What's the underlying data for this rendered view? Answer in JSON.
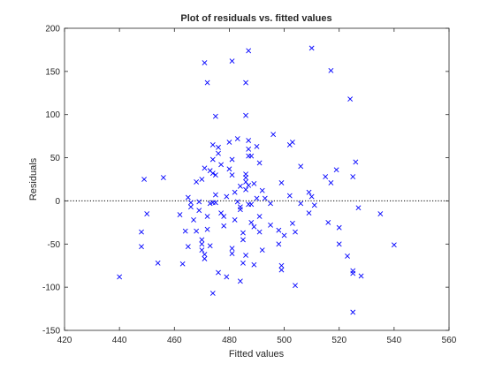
{
  "chart_data": {
    "type": "scatter",
    "title": "Plot of residuals vs. fitted values",
    "xlabel": "Fitted values",
    "ylabel": "Residuals",
    "xlim": [
      420,
      560
    ],
    "ylim": [
      -150,
      200
    ],
    "xticks": [
      420,
      440,
      460,
      480,
      500,
      520,
      540,
      560
    ],
    "yticks": [
      -150,
      -100,
      -50,
      0,
      50,
      100,
      150,
      200
    ],
    "xtick_labels": [
      "420",
      "440",
      "460",
      "480",
      "500",
      "520",
      "540",
      "560"
    ],
    "ytick_labels": [
      "-150",
      "-100",
      "-50",
      "0",
      "50",
      "100",
      "150",
      "200"
    ],
    "grid": false,
    "reference_line": {
      "y": 0,
      "style": "dotted",
      "color": "#000000"
    },
    "marker": "x",
    "marker_color": "#0000ff",
    "series": [
      {
        "points": [
          [
            440,
            -88
          ],
          [
            448,
            -36
          ],
          [
            448,
            -53
          ],
          [
            449,
            25
          ],
          [
            450,
            -15
          ],
          [
            454,
            -72
          ],
          [
            456,
            27
          ],
          [
            462,
            -16
          ],
          [
            463,
            -73
          ],
          [
            464,
            -35
          ],
          [
            465,
            4
          ],
          [
            465,
            -53
          ],
          [
            466,
            -7
          ],
          [
            466,
            -2
          ],
          [
            467,
            -22
          ],
          [
            468,
            22
          ],
          [
            468,
            -35
          ],
          [
            469,
            -1
          ],
          [
            469,
            -11
          ],
          [
            470,
            25
          ],
          [
            470,
            -45
          ],
          [
            470,
            -50
          ],
          [
            470,
            -57
          ],
          [
            471,
            -62
          ],
          [
            471,
            -67
          ],
          [
            471,
            38
          ],
          [
            471,
            160
          ],
          [
            472,
            137
          ],
          [
            472,
            -18
          ],
          [
            472,
            -33
          ],
          [
            473,
            35
          ],
          [
            473,
            -3
          ],
          [
            473,
            -52
          ],
          [
            474,
            65
          ],
          [
            474,
            48
          ],
          [
            474,
            32
          ],
          [
            474,
            -2
          ],
          [
            474,
            -107
          ],
          [
            475,
            98
          ],
          [
            475,
            30
          ],
          [
            475,
            7
          ],
          [
            475,
            -2
          ],
          [
            476,
            62
          ],
          [
            476,
            55
          ],
          [
            476,
            -83
          ],
          [
            477,
            42
          ],
          [
            477,
            -14
          ],
          [
            478,
            -18
          ],
          [
            478,
            -29
          ],
          [
            479,
            5
          ],
          [
            479,
            -88
          ],
          [
            480,
            68
          ],
          [
            480,
            37
          ],
          [
            481,
            162
          ],
          [
            481,
            48
          ],
          [
            481,
            30
          ],
          [
            481,
            -55
          ],
          [
            481,
            -61
          ],
          [
            482,
            10
          ],
          [
            482,
            -22
          ],
          [
            483,
            72
          ],
          [
            483,
            -1
          ],
          [
            484,
            17
          ],
          [
            484,
            -7
          ],
          [
            484,
            -10
          ],
          [
            484,
            -93
          ],
          [
            485,
            -37
          ],
          [
            485,
            -45
          ],
          [
            485,
            -72
          ],
          [
            486,
            22
          ],
          [
            486,
            137
          ],
          [
            486,
            99
          ],
          [
            486,
            31
          ],
          [
            486,
            27
          ],
          [
            486,
            13
          ],
          [
            486,
            -63
          ],
          [
            487,
            60
          ],
          [
            487,
            70
          ],
          [
            487,
            52
          ],
          [
            487,
            174
          ],
          [
            487,
            18
          ],
          [
            487,
            -4
          ],
          [
            488,
            52
          ],
          [
            488,
            -4
          ],
          [
            488,
            -25
          ],
          [
            489,
            20
          ],
          [
            489,
            -30
          ],
          [
            489,
            -74
          ],
          [
            490,
            63
          ],
          [
            490,
            3
          ],
          [
            491,
            44
          ],
          [
            491,
            -18
          ],
          [
            491,
            -36
          ],
          [
            492,
            12
          ],
          [
            492,
            -57
          ],
          [
            493,
            3
          ],
          [
            495,
            -3
          ],
          [
            495,
            -28
          ],
          [
            496,
            77
          ],
          [
            498,
            -34
          ],
          [
            498,
            -50
          ],
          [
            499,
            21
          ],
          [
            499,
            -75
          ],
          [
            499,
            -80
          ],
          [
            500,
            -40
          ],
          [
            502,
            65
          ],
          [
            502,
            6
          ],
          [
            503,
            68
          ],
          [
            503,
            -26
          ],
          [
            504,
            -36
          ],
          [
            504,
            -98
          ],
          [
            506,
            40
          ],
          [
            506,
            -3
          ],
          [
            509,
            10
          ],
          [
            509,
            -14
          ],
          [
            510,
            177
          ],
          [
            510,
            5
          ],
          [
            511,
            -5
          ],
          [
            515,
            28
          ],
          [
            516,
            -25
          ],
          [
            517,
            151
          ],
          [
            517,
            21
          ],
          [
            519,
            36
          ],
          [
            520,
            -31
          ],
          [
            520,
            -50
          ],
          [
            523,
            -64
          ],
          [
            524,
            118
          ],
          [
            525,
            28
          ],
          [
            525,
            -81
          ],
          [
            525,
            -84
          ],
          [
            525,
            -129
          ],
          [
            526,
            45
          ],
          [
            527,
            -8
          ],
          [
            528,
            -87
          ],
          [
            535,
            -15
          ],
          [
            540,
            -51
          ]
        ]
      }
    ]
  }
}
